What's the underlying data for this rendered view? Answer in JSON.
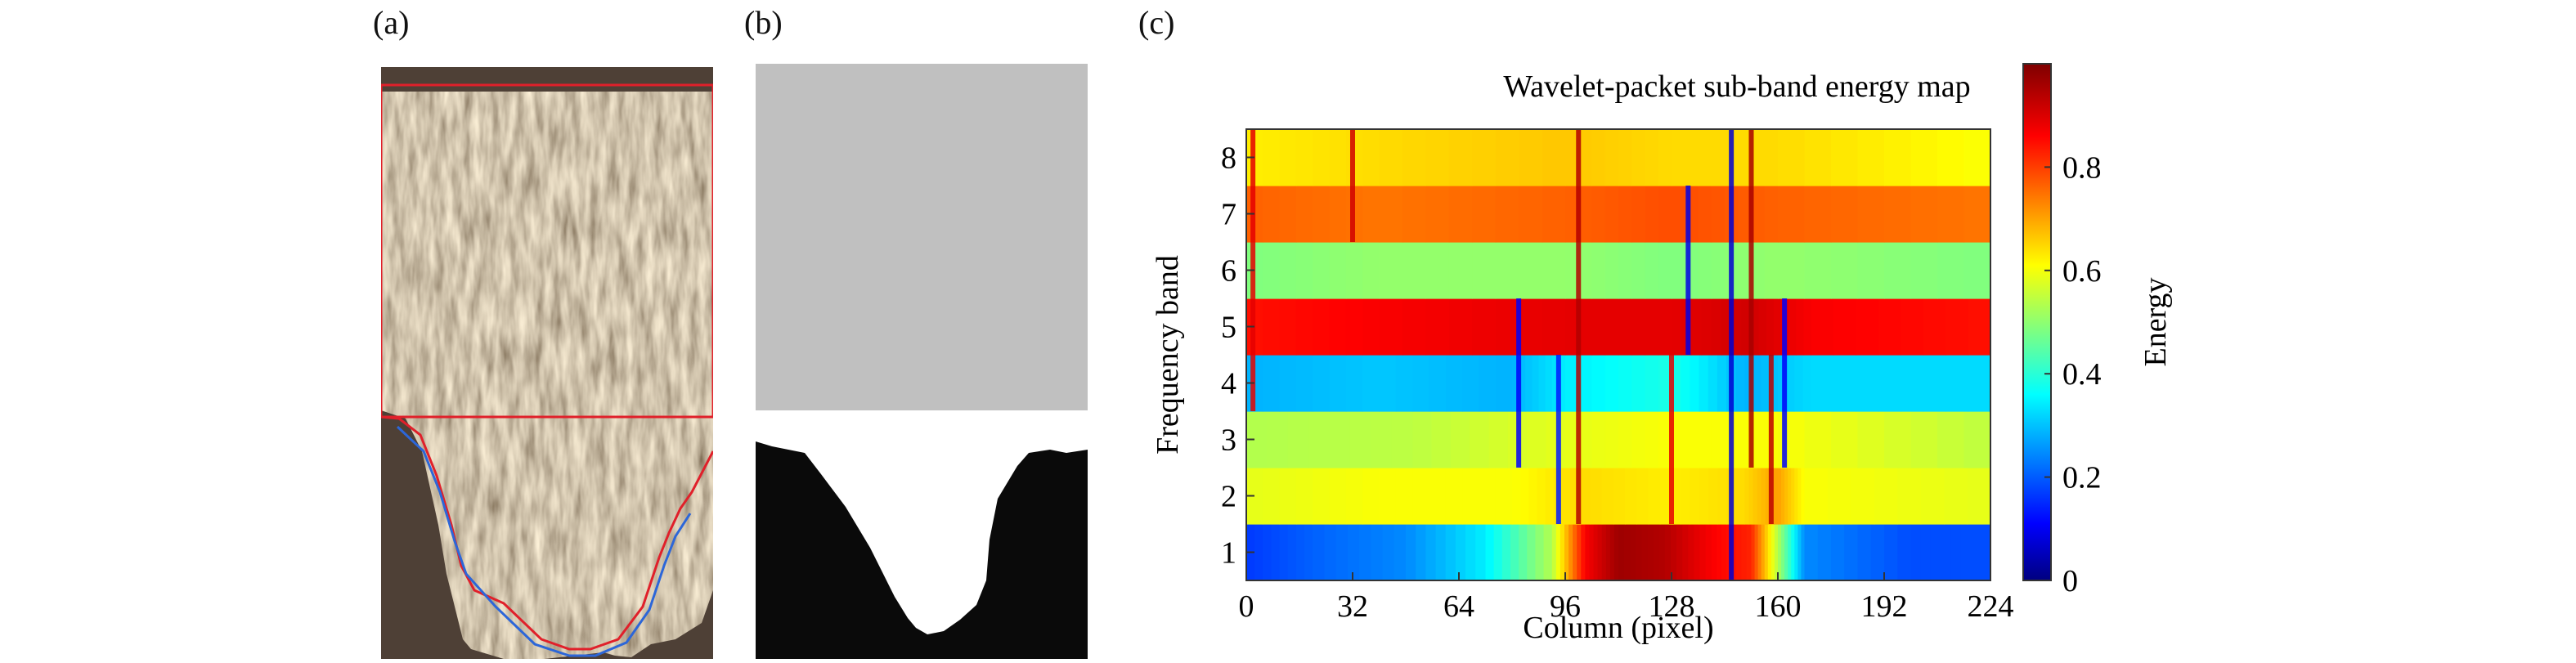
{
  "panels": {
    "a": {
      "label": "(a)"
    },
    "b": {
      "label": "(b)"
    },
    "c": {
      "label": "(c)"
    }
  },
  "colors": {
    "roi_line": "#e0202a",
    "mask_background": "#c0c0c0",
    "mask_foreground": "#0a0a0a",
    "micrograph_base": "#5a4c3c"
  },
  "chart_data": {
    "type": "heatmap",
    "title": "Wavelet-packet sub-band energy map",
    "xlabel": "Column (pixel)",
    "ylabel": "Frequency band",
    "xlim": [
      0,
      224
    ],
    "ylim": [
      0.5,
      8.5
    ],
    "x_ticks": [
      "0",
      "32",
      "64",
      "96",
      "128",
      "160",
      "192",
      "224"
    ],
    "y_ticks": [
      "1",
      "2",
      "3",
      "4",
      "5",
      "6",
      "7",
      "8"
    ],
    "colorbar": {
      "label": "Energy",
      "range": [
        0,
        1
      ],
      "ticks": [
        "0",
        "0.2",
        "0.4",
        "0.6",
        "0.8"
      ],
      "colormap": "jet"
    },
    "bands": [
      {
        "band": 1,
        "segments": [
          [
            0,
            0.18
          ],
          [
            20,
            0.22
          ],
          [
            48,
            0.26
          ],
          [
            72,
            0.36
          ],
          [
            92,
            0.55
          ],
          [
            102,
            0.88
          ],
          [
            112,
            0.97
          ],
          [
            126,
            0.95
          ],
          [
            140,
            0.88
          ],
          [
            152,
            0.84
          ],
          [
            160,
            0.55
          ],
          [
            168,
            0.26
          ],
          [
            200,
            0.2
          ],
          [
            224,
            0.2
          ]
        ]
      },
      {
        "band": 2,
        "segments": [
          [
            0,
            0.6
          ],
          [
            40,
            0.62
          ],
          [
            80,
            0.62
          ],
          [
            100,
            0.66
          ],
          [
            128,
            0.64
          ],
          [
            150,
            0.66
          ],
          [
            160,
            0.72
          ],
          [
            168,
            0.62
          ],
          [
            224,
            0.6
          ]
        ]
      },
      {
        "band": 3,
        "segments": [
          [
            0,
            0.55
          ],
          [
            50,
            0.56
          ],
          [
            96,
            0.6
          ],
          [
            128,
            0.62
          ],
          [
            160,
            0.62
          ],
          [
            224,
            0.56
          ]
        ]
      },
      {
        "band": 4,
        "segments": [
          [
            0,
            0.3
          ],
          [
            40,
            0.32
          ],
          [
            80,
            0.3
          ],
          [
            96,
            0.36
          ],
          [
            128,
            0.4
          ],
          [
            150,
            0.3
          ],
          [
            170,
            0.34
          ],
          [
            224,
            0.34
          ]
        ]
      },
      {
        "band": 5,
        "segments": [
          [
            0,
            0.86
          ],
          [
            40,
            0.88
          ],
          [
            96,
            0.9
          ],
          [
            128,
            0.9
          ],
          [
            152,
            0.92
          ],
          [
            170,
            0.88
          ],
          [
            224,
            0.86
          ]
        ]
      },
      {
        "band": 6,
        "segments": [
          [
            0,
            0.5
          ],
          [
            40,
            0.52
          ],
          [
            96,
            0.52
          ],
          [
            128,
            0.5
          ],
          [
            160,
            0.52
          ],
          [
            224,
            0.5
          ]
        ]
      },
      {
        "band": 7,
        "segments": [
          [
            0,
            0.78
          ],
          [
            40,
            0.76
          ],
          [
            96,
            0.78
          ],
          [
            128,
            0.8
          ],
          [
            160,
            0.78
          ],
          [
            224,
            0.76
          ]
        ]
      },
      {
        "band": 8,
        "segments": [
          [
            0,
            0.64
          ],
          [
            40,
            0.66
          ],
          [
            96,
            0.68
          ],
          [
            128,
            0.66
          ],
          [
            160,
            0.66
          ],
          [
            224,
            0.62
          ]
        ]
      }
    ],
    "vertical_features": [
      {
        "x": 2,
        "bands": [
          4,
          8
        ],
        "value": 0.9
      },
      {
        "x": 32,
        "bands": [
          7,
          8
        ],
        "value": 0.92
      },
      {
        "x": 82,
        "bands": [
          3,
          5
        ],
        "value": 0.12
      },
      {
        "x": 94,
        "bands": [
          2,
          4
        ],
        "value": 0.15
      },
      {
        "x": 100,
        "bands": [
          2,
          8
        ],
        "value": 0.95
      },
      {
        "x": 128,
        "bands": [
          2,
          4
        ],
        "value": 0.9
      },
      {
        "x": 133,
        "bands": [
          5,
          7
        ],
        "value": 0.1
      },
      {
        "x": 146,
        "bands": [
          1,
          8
        ],
        "value": 0.08
      },
      {
        "x": 152,
        "bands": [
          3,
          8
        ],
        "value": 0.96
      },
      {
        "x": 158,
        "bands": [
          2,
          4
        ],
        "value": 0.94
      },
      {
        "x": 162,
        "bands": [
          3,
          5
        ],
        "value": 0.12
      }
    ]
  }
}
